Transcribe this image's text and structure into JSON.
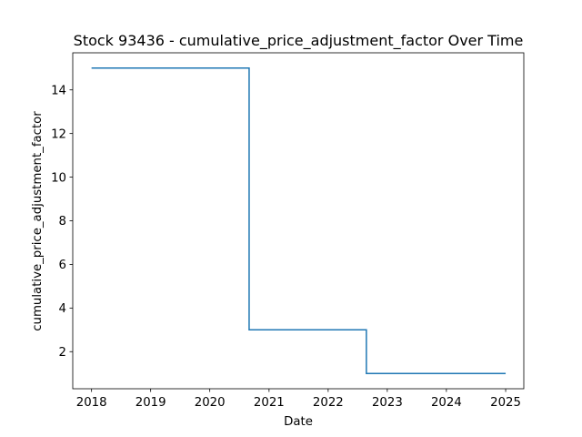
{
  "chart_data": {
    "type": "line",
    "title": "Stock 93436 - cumulative_price_adjustment_factor Over Time",
    "xlabel": "Date",
    "ylabel": "cumulative_price_adjustment_factor",
    "x_tick_labels": [
      "2018",
      "2019",
      "2020",
      "2021",
      "2022",
      "2023",
      "2024",
      "2025"
    ],
    "y_tick_labels": [
      "2",
      "4",
      "6",
      "8",
      "10",
      "12",
      "14"
    ],
    "y_ticks": [
      2,
      4,
      6,
      8,
      10,
      12,
      14
    ],
    "xlim": [
      "2017-09-07",
      "2025-04-23"
    ],
    "ylim": [
      0.3,
      15.7
    ],
    "grid": false,
    "step": "post",
    "series": [
      {
        "color": "#1f77b4",
        "points": [
          {
            "x": "2018-01-01",
            "y": 15
          },
          {
            "x": "2020-08-31",
            "y": 15
          },
          {
            "x": "2020-08-31",
            "y": 3
          },
          {
            "x": "2022-08-25",
            "y": 3
          },
          {
            "x": "2022-08-25",
            "y": 1
          },
          {
            "x": "2025-01-01",
            "y": 1
          }
        ]
      }
    ]
  }
}
